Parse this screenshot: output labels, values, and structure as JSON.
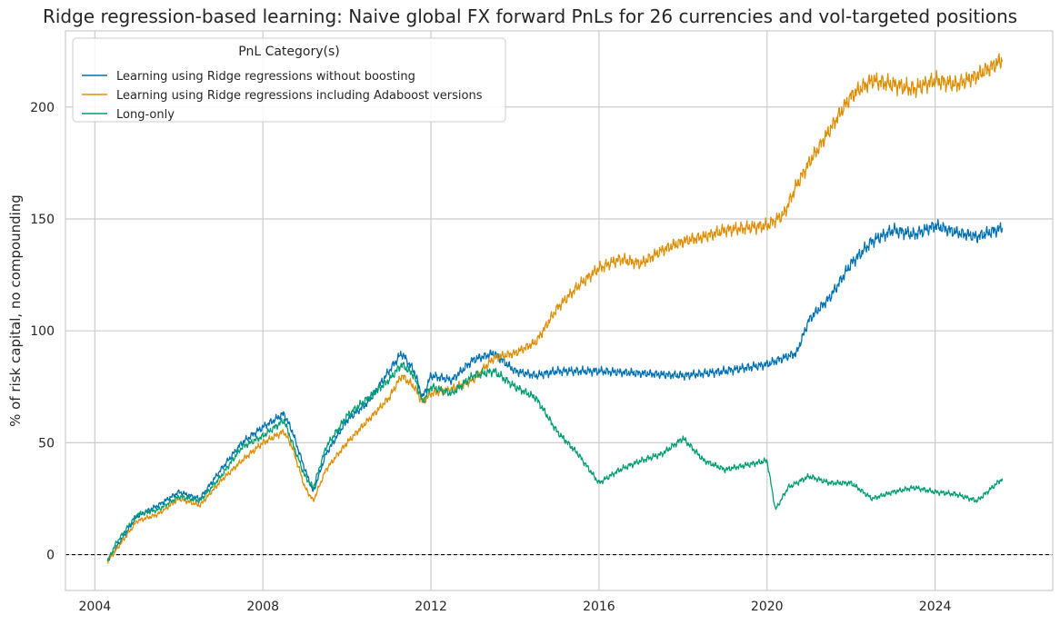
{
  "chart_data": {
    "type": "line",
    "title": "Ridge regression-based learning: Naive global FX forward PnLs for 26 currencies and vol-targeted positions",
    "xlabel": "",
    "ylabel": "% of risk capital, no compounding",
    "xlim": [
      2003.3,
      2026.8
    ],
    "ylim": [
      -16,
      234
    ],
    "x_ticks": [
      2004,
      2008,
      2012,
      2016,
      2020,
      2024
    ],
    "y_ticks": [
      0,
      50,
      100,
      150,
      200
    ],
    "grid": true,
    "zero_line": true,
    "legend": {
      "title": "PnL Category(s)",
      "position": "top-left"
    },
    "colors": {
      "blue": "#0072b2",
      "orange": "#de8f05",
      "green": "#029e73"
    },
    "series": [
      {
        "name": "Learning using Ridge regressions without boosting",
        "color": "#0072b2",
        "x": [
          2004.3,
          2004.5,
          2005.0,
          2005.5,
          2006.0,
          2006.5,
          2007.0,
          2007.5,
          2008.0,
          2008.5,
          2008.7,
          2009.0,
          2009.2,
          2009.5,
          2010.0,
          2010.5,
          2011.0,
          2011.3,
          2011.6,
          2011.8,
          2012.0,
          2012.5,
          2013.0,
          2013.5,
          2014.0,
          2014.5,
          2015.0,
          2016.0,
          2017.0,
          2018.0,
          2019.0,
          2020.0,
          2020.4,
          2020.7,
          2021.0,
          2021.5,
          2022.0,
          2022.5,
          2023.0,
          2023.5,
          2024.0,
          2024.5,
          2025.0,
          2025.6
        ],
        "y": [
          -3,
          3,
          17,
          22,
          28,
          25,
          38,
          50,
          57,
          63,
          55,
          38,
          28,
          45,
          60,
          68,
          82,
          90,
          82,
          70,
          80,
          78,
          87,
          90,
          82,
          80,
          82,
          82,
          81,
          80,
          82,
          85,
          88,
          90,
          105,
          115,
          130,
          140,
          145,
          143,
          147,
          144,
          142,
          146
        ]
      },
      {
        "name": "Learning using Ridge regressions including Adaboost versions",
        "color": "#de8f05",
        "x": [
          2004.3,
          2004.5,
          2005.0,
          2005.5,
          2006.0,
          2006.5,
          2007.0,
          2007.5,
          2008.0,
          2008.5,
          2008.7,
          2009.0,
          2009.2,
          2009.5,
          2010.0,
          2010.5,
          2011.0,
          2011.3,
          2011.6,
          2011.8,
          2012.0,
          2012.5,
          2013.0,
          2013.5,
          2014.0,
          2014.5,
          2015.0,
          2015.5,
          2016.0,
          2016.5,
          2017.0,
          2017.5,
          2018.0,
          2018.5,
          2019.0,
          2019.5,
          2020.0,
          2020.4,
          2020.7,
          2021.0,
          2021.5,
          2022.0,
          2022.5,
          2023.0,
          2023.5,
          2024.0,
          2024.5,
          2025.0,
          2025.6
        ],
        "y": [
          -3,
          2,
          15,
          18,
          25,
          22,
          33,
          42,
          50,
          55,
          48,
          30,
          24,
          38,
          50,
          60,
          70,
          80,
          75,
          68,
          72,
          74,
          78,
          88,
          90,
          95,
          110,
          120,
          128,
          132,
          130,
          136,
          140,
          142,
          145,
          146,
          147,
          152,
          165,
          175,
          190,
          205,
          212,
          210,
          208,
          212,
          210,
          214,
          221
        ]
      },
      {
        "name": "Long-only",
        "color": "#029e73",
        "x": [
          2004.3,
          2004.5,
          2005.0,
          2005.5,
          2006.0,
          2006.5,
          2007.0,
          2007.5,
          2008.0,
          2008.5,
          2008.7,
          2009.0,
          2009.2,
          2009.5,
          2010.0,
          2010.5,
          2011.0,
          2011.3,
          2011.6,
          2011.8,
          2012.0,
          2012.5,
          2013.0,
          2013.5,
          2014.0,
          2014.5,
          2015.0,
          2015.5,
          2016.0,
          2016.5,
          2017.0,
          2017.5,
          2018.0,
          2018.5,
          2019.0,
          2019.5,
          2020.0,
          2020.2,
          2020.5,
          2021.0,
          2021.5,
          2022.0,
          2022.5,
          2023.0,
          2023.5,
          2024.0,
          2024.5,
          2025.0,
          2025.6
        ],
        "y": [
          -3,
          5,
          18,
          20,
          26,
          24,
          35,
          48,
          53,
          60,
          50,
          35,
          30,
          48,
          62,
          70,
          78,
          85,
          80,
          68,
          75,
          72,
          80,
          82,
          75,
          70,
          55,
          45,
          32,
          38,
          42,
          45,
          52,
          42,
          38,
          40,
          42,
          20,
          30,
          35,
          32,
          32,
          25,
          28,
          30,
          28,
          27,
          24,
          34
        ]
      }
    ]
  }
}
